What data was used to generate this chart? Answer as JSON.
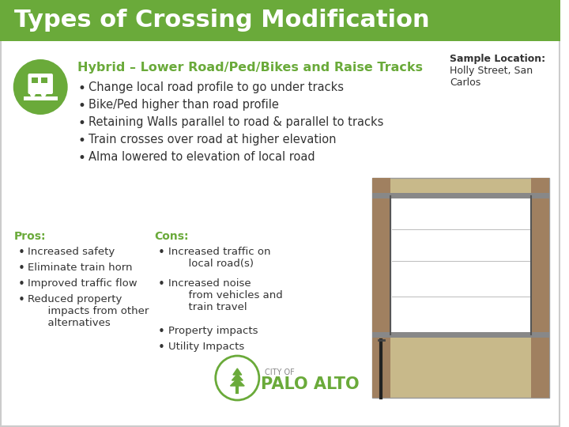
{
  "title": "Types of Crossing Modification",
  "title_bg_color": "#6aaa3a",
  "title_text_color": "#ffffff",
  "background_color": "#ffffff",
  "border_color": "#cccccc",
  "heading": "Hybrid – Lower Road/Ped/Bikes and Raise Tracks",
  "heading_color": "#6aaa3a",
  "bullet_points": [
    "Change local road profile to go under tracks",
    "Bike/Ped higher than road profile",
    "Retaining Walls parallel to road & parallel to tracks",
    "Train crosses over road at higher elevation",
    "Alma lowered to elevation of local road"
  ],
  "pros_label": "Pros:",
  "pros_color": "#6aaa3a",
  "pros_items": [
    "Increased safety",
    "Eliminate train horn",
    "Improved traffic flow",
    "Reduced property\n      impacts from other\n      alternatives"
  ],
  "cons_label": "Cons:",
  "cons_color": "#6aaa3a",
  "cons_items": [
    "Increased traffic on\n      local road(s)",
    "Increased noise\n      from vehicles and\n      train travel",
    "Property impacts",
    "Utility Impacts"
  ],
  "sample_location_label": "Sample Location:",
  "sample_location_text": "Holly Street, San\nCarlos",
  "icon_bg_color": "#6aaa3a",
  "bullet_color": "#333333",
  "text_color": "#333333",
  "city_of_text": "CITY OF",
  "palo_alto_text": "PALO ALTO"
}
